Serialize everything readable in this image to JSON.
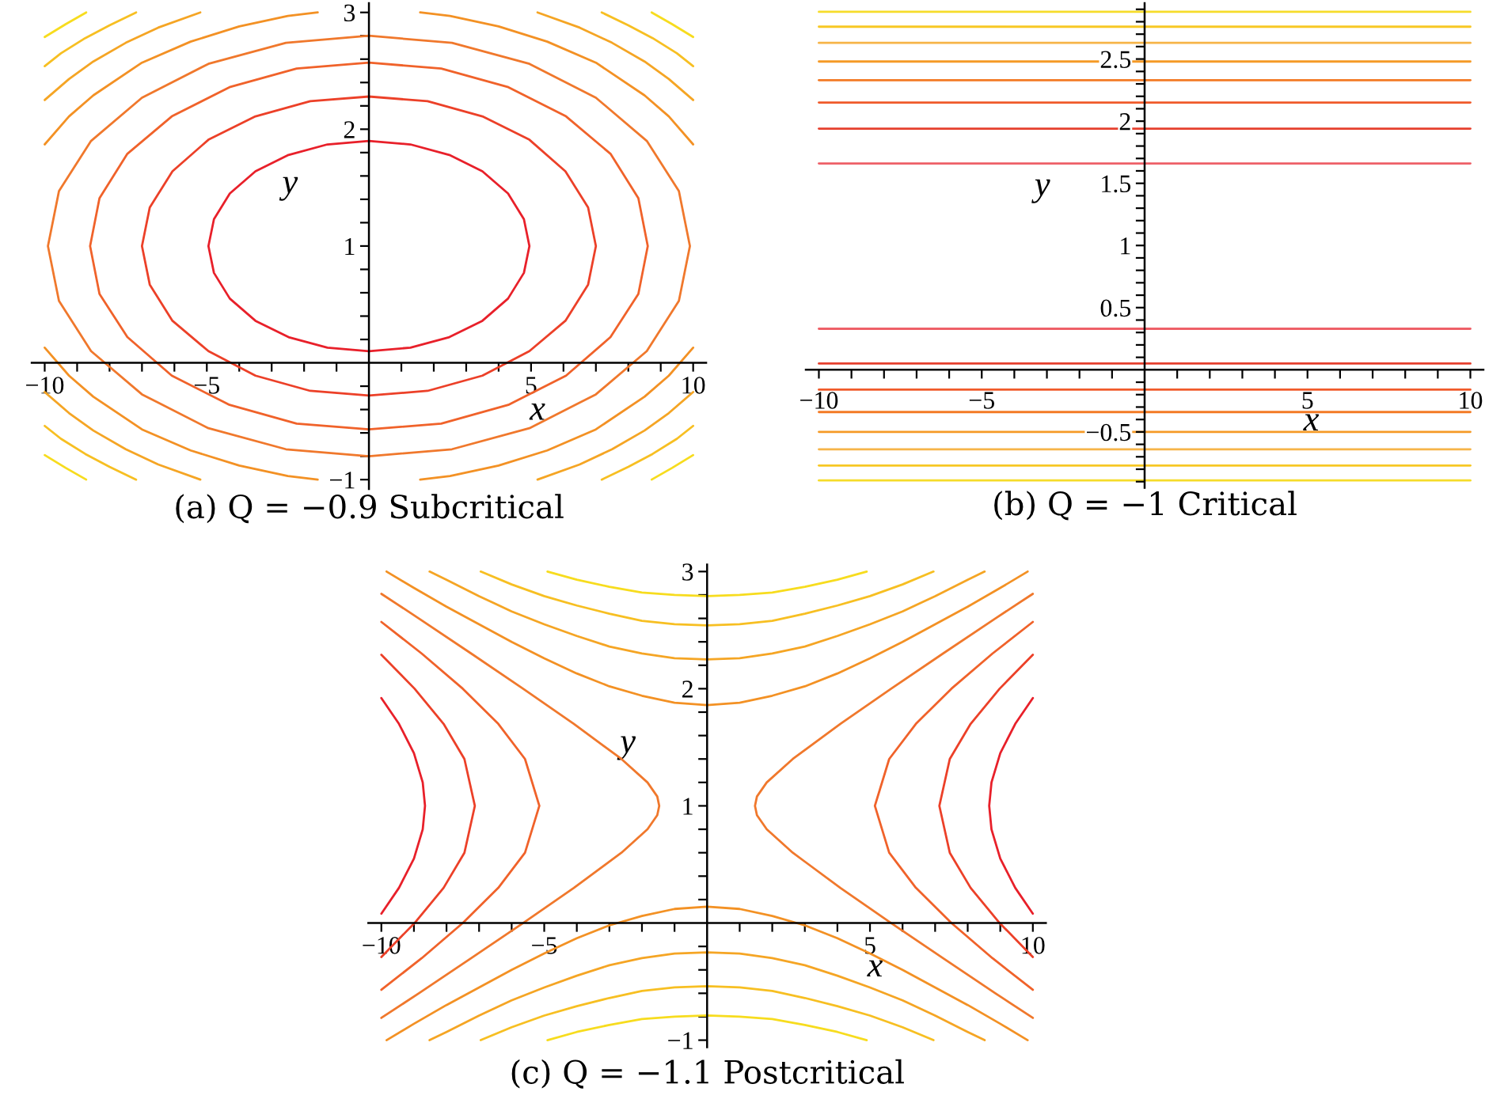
{
  "chart_data": [
    {
      "type": "line",
      "title": "(a) Q = −0.9 Subcritical",
      "xlabel": "x",
      "ylabel": "y",
      "xlim": [
        -10.4,
        10.4
      ],
      "ylim": [
        -1.08,
        3.08
      ],
      "xticks": [
        {
          "value": -10,
          "label": "−10"
        },
        {
          "value": -9,
          "label": null
        },
        {
          "value": -8,
          "label": null
        },
        {
          "value": -7,
          "label": null
        },
        {
          "value": -6,
          "label": null
        },
        {
          "value": -5,
          "label": "−5"
        },
        {
          "value": -4,
          "label": null
        },
        {
          "value": -3,
          "label": null
        },
        {
          "value": -2,
          "label": null
        },
        {
          "value": -1,
          "label": null
        },
        {
          "value": 1,
          "label": null
        },
        {
          "value": 2,
          "label": null
        },
        {
          "value": 3,
          "label": null
        },
        {
          "value": 4,
          "label": null
        },
        5,
        {
          "value": 6,
          "label": null
        },
        {
          "value": 7,
          "label": null
        },
        {
          "value": 8,
          "label": null
        },
        {
          "value": 9,
          "label": null
        },
        10
      ],
      "yticks": [
        {
          "value": -1,
          "label": "−1"
        },
        {
          "value": -0.8,
          "label": null
        },
        {
          "value": -0.6,
          "label": null
        },
        {
          "value": -0.4,
          "label": null
        },
        {
          "value": -0.2,
          "label": null
        },
        {
          "value": 0.2,
          "label": null
        },
        {
          "value": 0.4,
          "label": null
        },
        {
          "value": 0.6,
          "label": null
        },
        {
          "value": 0.8,
          "label": null
        },
        1,
        {
          "value": 1.2,
          "label": null
        },
        {
          "value": 1.4,
          "label": null
        },
        {
          "value": 1.6,
          "label": null
        },
        {
          "value": 1.8,
          "label": null
        },
        2,
        {
          "value": 2.2,
          "label": null
        },
        {
          "value": 2.4,
          "label": null
        },
        {
          "value": 2.6,
          "label": null
        },
        {
          "value": 2.8,
          "label": null
        },
        3
      ],
      "series": [
        {
          "color": "#e8202a",
          "x": [
            4.95,
            4.78,
            4.29,
            3.5,
            2.48,
            1.28,
            0,
            -1.28,
            -2.48,
            -3.5,
            -4.29,
            -4.78,
            -4.95,
            -4.78,
            -4.29,
            -3.5,
            -2.48,
            -1.28,
            0,
            1.28,
            2.48,
            3.5,
            4.29,
            4.78,
            4.95,
            4.78
          ],
          "values": [
            1,
            1.23,
            1.45,
            1.64,
            1.78,
            1.87,
            1.9,
            1.87,
            1.78,
            1.64,
            1.45,
            1.23,
            1,
            0.77,
            0.55,
            0.36,
            0.22,
            0.13,
            0.1,
            0.13,
            0.22,
            0.36,
            0.55,
            0.77,
            1,
            1.23
          ]
        },
        {
          "color": "#ec4028",
          "x": [
            7.0,
            6.76,
            6.06,
            4.95,
            3.5,
            1.81,
            0,
            -1.81,
            -3.5,
            -4.95,
            -6.06,
            -6.76,
            -7.0,
            -6.76,
            -6.06,
            -4.95,
            -3.5,
            -1.81,
            0,
            1.81,
            3.5,
            4.95,
            6.06,
            6.76,
            7.0,
            6.76
          ],
          "values": [
            1,
            1.33,
            1.64,
            1.91,
            2.11,
            2.24,
            2.28,
            2.24,
            2.11,
            1.91,
            1.64,
            1.33,
            1,
            0.67,
            0.36,
            0.1,
            -0.11,
            -0.24,
            -0.28,
            -0.24,
            -0.11,
            0.1,
            0.36,
            0.67,
            1,
            1.33
          ]
        },
        {
          "color": "#f0622a",
          "x": [
            8.6,
            8.31,
            7.45,
            6.08,
            4.3,
            2.23,
            0,
            -2.23,
            -4.3,
            -6.08,
            -7.45,
            -8.31,
            -8.6,
            -8.31,
            -7.45,
            -6.08,
            -4.3,
            -2.23,
            0,
            2.23,
            4.3,
            6.08,
            7.45,
            8.31,
            8.6,
            8.31
          ],
          "values": [
            1,
            1.41,
            1.79,
            2.11,
            2.36,
            2.52,
            2.57,
            2.52,
            2.36,
            2.11,
            1.79,
            1.41,
            1,
            0.59,
            0.22,
            -0.11,
            -0.36,
            -0.52,
            -0.57,
            -0.52,
            -0.36,
            -0.11,
            0.22,
            0.59,
            1,
            1.41
          ]
        },
        {
          "color": "#f0782c",
          "x": [
            9.9,
            9.56,
            8.57,
            7.0,
            4.95,
            2.56,
            0,
            -2.56,
            -4.95,
            -7.0,
            -8.57,
            -9.56,
            -9.9,
            -9.56,
            -8.57,
            -7.0,
            -4.95,
            -2.56,
            0,
            2.56,
            4.95,
            7.0,
            8.57,
            9.56,
            9.9,
            9.56
          ],
          "values": [
            1,
            1.47,
            1.9,
            2.27,
            2.56,
            2.74,
            2.8,
            2.74,
            2.56,
            2.27,
            1.9,
            1.47,
            1,
            0.53,
            0.1,
            -0.27,
            -0.56,
            -0.74,
            -0.8,
            -0.74,
            -0.56,
            -0.27,
            0.1,
            0.53,
            1,
            1.47
          ]
        },
        {
          "color": "#f39124",
          "x": [
            1.58,
            2.5,
            4,
            5.5,
            7,
            8.5,
            9.25,
            10
          ],
          "values": [
            3.0,
            2.97,
            2.88,
            2.75,
            2.57,
            2.29,
            2.11,
            1.87
          ]
        },
        {
          "color": "#f39124",
          "x": [
            -1.58,
            -2.5,
            -4,
            -5.5,
            -7,
            -8.5,
            -9.25,
            -10
          ],
          "values": [
            3.0,
            2.97,
            2.88,
            2.75,
            2.57,
            2.29,
            2.11,
            1.87
          ]
        },
        {
          "color": "#f39124",
          "x": [
            1.58,
            2.5,
            4,
            5.5,
            7,
            8.5,
            9.25,
            10
          ],
          "values": [
            -1.0,
            -0.97,
            -0.88,
            -0.75,
            -0.57,
            -0.29,
            -0.11,
            0.13
          ]
        },
        {
          "color": "#f39124",
          "x": [
            -1.58,
            -2.5,
            -4,
            -5.5,
            -7,
            -8.5,
            -9.25,
            -10
          ],
          "values": [
            -1.0,
            -0.97,
            -0.88,
            -0.75,
            -0.57,
            -0.29,
            -0.11,
            0.13
          ]
        },
        {
          "color": "#f5a524",
          "x": [
            5.2,
            6.5,
            7.5,
            8.5,
            9.25,
            10
          ],
          "values": [
            3.0,
            2.87,
            2.74,
            2.58,
            2.43,
            2.25
          ]
        },
        {
          "color": "#f5a524",
          "x": [
            -5.2,
            -6.5,
            -7.5,
            -8.5,
            -9.25,
            -10
          ],
          "values": [
            3.0,
            2.87,
            2.74,
            2.58,
            2.43,
            2.25
          ]
        },
        {
          "color": "#f5a524",
          "x": [
            5.2,
            6.5,
            7.5,
            8.5,
            9.25,
            10
          ],
          "values": [
            -1.0,
            -0.87,
            -0.74,
            -0.58,
            -0.43,
            -0.25
          ]
        },
        {
          "color": "#f5a524",
          "x": [
            -5.2,
            -6.5,
            -7.5,
            -8.5,
            -9.25,
            -10
          ],
          "values": [
            -1.0,
            -0.87,
            -0.74,
            -0.58,
            -0.43,
            -0.25
          ]
        },
        {
          "color": "#f7bf22",
          "x": [
            7.18,
            8,
            8.75,
            9.5,
            10
          ],
          "values": [
            3.0,
            2.89,
            2.78,
            2.65,
            2.54
          ]
        },
        {
          "color": "#f7bf22",
          "x": [
            -7.18,
            -8,
            -8.75,
            -9.5,
            -10
          ],
          "values": [
            3.0,
            2.89,
            2.78,
            2.65,
            2.54
          ]
        },
        {
          "color": "#f7bf22",
          "x": [
            7.18,
            8,
            8.75,
            9.5,
            10
          ],
          "values": [
            -1.0,
            -0.89,
            -0.78,
            -0.65,
            -0.54
          ]
        },
        {
          "color": "#f7bf22",
          "x": [
            -7.18,
            -8,
            -8.75,
            -9.5,
            -10
          ],
          "values": [
            -1.0,
            -0.89,
            -0.78,
            -0.65,
            -0.54
          ]
        },
        {
          "color": "#f7dc1e",
          "x": [
            8.72,
            9.35,
            10
          ],
          "values": [
            3.0,
            2.9,
            2.79
          ]
        },
        {
          "color": "#f7dc1e",
          "x": [
            -8.72,
            -9.35,
            -10
          ],
          "values": [
            3.0,
            2.9,
            2.79
          ]
        },
        {
          "color": "#f7dc1e",
          "x": [
            8.72,
            9.35,
            10
          ],
          "values": [
            -1.0,
            -0.9,
            -0.79
          ]
        },
        {
          "color": "#f7dc1e",
          "x": [
            -8.72,
            -9.35,
            -10
          ],
          "values": [
            -1.0,
            -0.9,
            -0.79
          ]
        }
      ]
    },
    {
      "type": "line",
      "title": "(b) Q = −1 Critical",
      "xlabel": "x",
      "ylabel": "y",
      "xlim": [
        -10.4,
        10.4
      ],
      "ylim": [
        -0.95,
        2.95
      ],
      "xticks": [
        {
          "value": -10,
          "label": "−10"
        },
        {
          "value": -9,
          "label": null
        },
        {
          "value": -8,
          "label": null
        },
        {
          "value": -7,
          "label": null
        },
        {
          "value": -6,
          "label": null
        },
        {
          "value": -5,
          "label": "−5"
        },
        {
          "value": -4,
          "label": null
        },
        {
          "value": -3,
          "label": null
        },
        {
          "value": -2,
          "label": null
        },
        {
          "value": -1,
          "label": null
        },
        {
          "value": 1,
          "label": null
        },
        {
          "value": 2,
          "label": null
        },
        {
          "value": 3,
          "label": null
        },
        {
          "value": 4,
          "label": null
        },
        5,
        {
          "value": 6,
          "label": null
        },
        {
          "value": 7,
          "label": null
        },
        {
          "value": 8,
          "label": null
        },
        {
          "value": 9,
          "label": null
        },
        10
      ],
      "yticks": [
        {
          "value": -0.9,
          "label": null
        },
        {
          "value": -0.8,
          "label": null
        },
        {
          "value": -0.7,
          "label": null
        },
        {
          "value": -0.6,
          "label": null
        },
        {
          "value": -0.5,
          "label": "−0.5"
        },
        {
          "value": -0.4,
          "label": null
        },
        {
          "value": -0.3,
          "label": null
        },
        {
          "value": -0.2,
          "label": null
        },
        {
          "value": -0.1,
          "label": null
        },
        {
          "value": 0.1,
          "label": null
        },
        {
          "value": 0.2,
          "label": null
        },
        {
          "value": 0.3,
          "label": null
        },
        {
          "value": 0.4,
          "label": null
        },
        0.5,
        {
          "value": 0.6,
          "label": null
        },
        {
          "value": 0.7,
          "label": null
        },
        {
          "value": 0.8,
          "label": null
        },
        {
          "value": 0.9,
          "label": null
        },
        1,
        {
          "value": 1.1,
          "label": null
        },
        {
          "value": 1.2,
          "label": null
        },
        {
          "value": 1.3,
          "label": null
        },
        {
          "value": 1.4,
          "label": null
        },
        1.5,
        {
          "value": 1.6,
          "label": null
        },
        {
          "value": 1.7,
          "label": null
        },
        {
          "value": 1.8,
          "label": null
        },
        {
          "value": 1.9,
          "label": null
        },
        2,
        {
          "value": 2.1,
          "label": null
        },
        {
          "value": 2.2,
          "label": null
        },
        {
          "value": 2.3,
          "label": null
        },
        {
          "value": 2.4,
          "label": null
        },
        2.5,
        {
          "value": 2.6,
          "label": null
        },
        {
          "value": 2.7,
          "label": null
        },
        {
          "value": 2.8,
          "label": null
        },
        {
          "value": 2.9,
          "label": null
        }
      ],
      "series": [
        {
          "color": "#ee6068",
          "x": [
            -10,
            10
          ],
          "values": [
            1.66,
            1.66
          ]
        },
        {
          "color": "#ee6068",
          "x": [
            -10,
            10
          ],
          "values": [
            0.33,
            0.33
          ]
        },
        {
          "color": "#e6402e",
          "x": [
            -10,
            10
          ],
          "values": [
            1.94,
            1.94
          ]
        },
        {
          "color": "#e6402e",
          "x": [
            -10,
            10
          ],
          "values": [
            0.05,
            0.05
          ]
        },
        {
          "color": "#f05a2a",
          "x": [
            -10,
            10
          ],
          "values": [
            2.15,
            2.15
          ]
        },
        {
          "color": "#f05a2a",
          "x": [
            -10,
            10
          ],
          "values": [
            -0.16,
            -0.16
          ]
        },
        {
          "color": "#f37a24",
          "x": [
            -10,
            10
          ],
          "values": [
            2.33,
            2.33
          ]
        },
        {
          "color": "#f37a24",
          "x": [
            -10,
            10
          ],
          "values": [
            -0.34,
            -0.34
          ]
        },
        {
          "color": "#f59a26",
          "x": [
            -10,
            10
          ],
          "values": [
            2.48,
            2.48
          ]
        },
        {
          "color": "#f59a26",
          "x": [
            -10,
            10
          ],
          "values": [
            -0.5,
            -0.5
          ]
        },
        {
          "color": "#f6b448",
          "x": [
            -10,
            10
          ],
          "values": [
            2.63,
            2.63
          ]
        },
        {
          "color": "#f6b448",
          "x": [
            -10,
            10
          ],
          "values": [
            -0.64,
            -0.64
          ]
        },
        {
          "color": "#f7c824",
          "x": [
            -10,
            10
          ],
          "values": [
            2.76,
            2.76
          ]
        },
        {
          "color": "#f7c824",
          "x": [
            -10,
            10
          ],
          "values": [
            -0.77,
            -0.77
          ]
        },
        {
          "color": "#f6dc2a",
          "x": [
            -10,
            10
          ],
          "values": [
            2.88,
            2.88
          ]
        },
        {
          "color": "#f6dc2a",
          "x": [
            -10,
            10
          ],
          "values": [
            -0.89,
            -0.89
          ]
        }
      ]
    },
    {
      "type": "line",
      "title": "(c) Q = −1.1 Postcritical",
      "xlabel": "x",
      "ylabel": "y",
      "xlim": [
        -10.4,
        10.4
      ],
      "ylim": [
        -1.06,
        3.06
      ],
      "xticks": [
        {
          "value": -10,
          "label": "−10"
        },
        {
          "value": -9,
          "label": null
        },
        {
          "value": -8,
          "label": null
        },
        {
          "value": -7,
          "label": null
        },
        {
          "value": -6,
          "label": null
        },
        {
          "value": -5,
          "label": "−5"
        },
        {
          "value": -4,
          "label": null
        },
        {
          "value": -3,
          "label": null
        },
        {
          "value": -2,
          "label": null
        },
        {
          "value": -1,
          "label": null
        },
        {
          "value": 1,
          "label": null
        },
        {
          "value": 2,
          "label": null
        },
        {
          "value": 3,
          "label": null
        },
        {
          "value": 4,
          "label": null
        },
        5,
        {
          "value": 6,
          "label": null
        },
        {
          "value": 7,
          "label": null
        },
        {
          "value": 8,
          "label": null
        },
        {
          "value": 9,
          "label": null
        },
        10
      ],
      "yticks": [
        {
          "value": -1,
          "label": "−1"
        },
        {
          "value": -0.8,
          "label": null
        },
        {
          "value": -0.6,
          "label": null
        },
        {
          "value": -0.4,
          "label": null
        },
        {
          "value": -0.2,
          "label": null
        },
        {
          "value": 0.2,
          "label": null
        },
        {
          "value": 0.4,
          "label": null
        },
        {
          "value": 0.6,
          "label": null
        },
        {
          "value": 0.8,
          "label": null
        },
        1,
        {
          "value": 1.2,
          "label": null
        },
        {
          "value": 1.4,
          "label": null
        },
        {
          "value": 1.6,
          "label": null
        },
        {
          "value": 1.8,
          "label": null
        },
        2,
        {
          "value": 2.2,
          "label": null
        },
        {
          "value": 2.4,
          "label": null
        },
        {
          "value": 2.6,
          "label": null
        },
        {
          "value": 2.8,
          "label": null
        },
        3
      ],
      "series": [
        {
          "color": "#e8202a",
          "x": [
            10,
            9.46,
            9.0,
            8.73,
            8.66,
            8.73,
            9.0,
            9.46,
            10
          ],
          "values": [
            1.92,
            1.7,
            1.45,
            1.2,
            1.0,
            0.8,
            0.55,
            0.3,
            0.08
          ]
        },
        {
          "color": "#e8202a",
          "x": [
            -10,
            -9.46,
            -9.0,
            -8.73,
            -8.66,
            -8.73,
            -9.0,
            -9.46,
            -10
          ],
          "values": [
            1.92,
            1.7,
            1.45,
            1.2,
            1.0,
            0.8,
            0.55,
            0.3,
            0.08
          ]
        },
        {
          "color": "#ec4028",
          "x": [
            10,
            8.98,
            8.09,
            7.45,
            7.13,
            7.45,
            8.09,
            8.98,
            10
          ],
          "values": [
            2.29,
            2.0,
            1.7,
            1.4,
            1.0,
            0.6,
            0.3,
            0.0,
            -0.29
          ]
        },
        {
          "color": "#ec4028",
          "x": [
            -10,
            -8.98,
            -8.09,
            -7.45,
            -7.13,
            -7.45,
            -8.09,
            -8.98,
            -10
          ],
          "values": [
            2.29,
            2.0,
            1.7,
            1.4,
            1.0,
            0.6,
            0.3,
            0.0,
            -0.29
          ]
        },
        {
          "color": "#f0622a",
          "x": [
            10,
            8.76,
            7.5,
            6.41,
            5.59,
            5.15,
            5.59,
            6.41,
            7.5,
            8.76,
            10
          ],
          "values": [
            2.57,
            2.3,
            2.0,
            1.7,
            1.4,
            1.0,
            0.6,
            0.3,
            0.0,
            -0.3,
            -0.57
          ]
        },
        {
          "color": "#f0622a",
          "x": [
            -10,
            -8.76,
            -7.5,
            -6.41,
            -5.59,
            -5.15,
            -5.59,
            -6.41,
            -7.5,
            -8.76,
            -10
          ],
          "values": [
            2.57,
            2.3,
            2.0,
            1.7,
            1.4,
            1.0,
            0.6,
            0.3,
            0.0,
            -0.3,
            -0.57
          ]
        },
        {
          "color": "#f0782c",
          "x": [
            10,
            8.85,
            7.24,
            5.65,
            4.09,
            2.63,
            1.83,
            1.53,
            1.47,
            1.53,
            1.83,
            2.63,
            4.09,
            5.65,
            7.24,
            8.85,
            10
          ],
          "values": [
            2.81,
            2.6,
            2.3,
            2.0,
            1.7,
            1.4,
            1.2,
            1.08,
            1.0,
            0.92,
            0.8,
            0.6,
            0.3,
            0.0,
            -0.3,
            -0.6,
            -0.81
          ]
        },
        {
          "color": "#f0782c",
          "x": [
            -10,
            -8.85,
            -7.24,
            -5.65,
            -4.09,
            -2.63,
            -1.83,
            -1.53,
            -1.47,
            -1.53,
            -1.83,
            -2.63,
            -4.09,
            -5.65,
            -7.24,
            -8.85,
            -10
          ],
          "values": [
            2.81,
            2.6,
            2.3,
            2.0,
            1.7,
            1.4,
            1.2,
            1.08,
            1.0,
            0.92,
            0.8,
            0.6,
            0.3,
            0.0,
            -0.3,
            -0.6,
            -0.81
          ]
        },
        {
          "color": "#f39124",
          "x": [
            -9.84,
            -9,
            -8,
            -7,
            -6,
            -5,
            -4,
            -3,
            -2,
            -1,
            0,
            1,
            2,
            3,
            4,
            5,
            6,
            7,
            8,
            9,
            9.84
          ],
          "values": [
            3.0,
            2.86,
            2.7,
            2.55,
            2.4,
            2.26,
            2.13,
            2.02,
            1.94,
            1.88,
            1.86,
            1.88,
            1.94,
            2.02,
            2.13,
            2.26,
            2.4,
            2.55,
            2.7,
            2.86,
            3.0
          ]
        },
        {
          "color": "#f39124",
          "x": [
            -9.84,
            -9,
            -8,
            -7,
            -6,
            -5,
            -4,
            -3,
            -2,
            -1,
            0,
            1,
            2,
            3,
            4,
            5,
            6,
            7,
            8,
            9,
            9.84
          ],
          "values": [
            -1.0,
            -0.86,
            -0.7,
            -0.55,
            -0.4,
            -0.26,
            -0.13,
            -0.02,
            0.06,
            0.12,
            0.14,
            0.12,
            0.06,
            -0.02,
            -0.13,
            -0.26,
            -0.4,
            -0.55,
            -0.7,
            -0.86,
            -1.0
          ]
        },
        {
          "color": "#f5a524",
          "x": [
            -8.52,
            -8,
            -7,
            -6,
            -5,
            -4,
            -3,
            -2,
            -1,
            0,
            1,
            2,
            3,
            4,
            5,
            6,
            7,
            8,
            8.52
          ],
          "values": [
            3.0,
            2.93,
            2.79,
            2.66,
            2.55,
            2.45,
            2.36,
            2.3,
            2.26,
            2.25,
            2.26,
            2.3,
            2.36,
            2.45,
            2.55,
            2.66,
            2.79,
            2.93,
            3.0
          ]
        },
        {
          "color": "#f5a524",
          "x": [
            -8.52,
            -8,
            -7,
            -6,
            -5,
            -4,
            -3,
            -2,
            -1,
            0,
            1,
            2,
            3,
            4,
            5,
            6,
            7,
            8,
            8.52
          ],
          "values": [
            -1.0,
            -0.93,
            -0.79,
            -0.66,
            -0.55,
            -0.45,
            -0.36,
            -0.3,
            -0.26,
            -0.25,
            -0.26,
            -0.3,
            -0.36,
            -0.45,
            -0.55,
            -0.66,
            -0.79,
            -0.93,
            -1.0
          ]
        },
        {
          "color": "#f7bf22",
          "x": [
            -6.95,
            -6,
            -5,
            -4,
            -3,
            -2,
            -1,
            0,
            1,
            2,
            3,
            4,
            5,
            6,
            6.95
          ],
          "values": [
            3.0,
            2.89,
            2.79,
            2.71,
            2.64,
            2.58,
            2.55,
            2.54,
            2.55,
            2.58,
            2.64,
            2.71,
            2.79,
            2.89,
            3.0
          ]
        },
        {
          "color": "#f7bf22",
          "x": [
            -6.95,
            -6,
            -5,
            -4,
            -3,
            -2,
            -1,
            0,
            1,
            2,
            3,
            4,
            5,
            6,
            6.95
          ],
          "values": [
            -1.0,
            -0.89,
            -0.79,
            -0.71,
            -0.64,
            -0.58,
            -0.55,
            -0.54,
            -0.55,
            -0.58,
            -0.64,
            -0.71,
            -0.79,
            -0.89,
            -1.0
          ]
        },
        {
          "color": "#f7dc1e",
          "x": [
            -4.9,
            -4,
            -3,
            -2,
            -1,
            0,
            1,
            2,
            3,
            4,
            4.9
          ],
          "values": [
            3.0,
            2.93,
            2.87,
            2.82,
            2.8,
            2.79,
            2.8,
            2.82,
            2.87,
            2.93,
            3.0
          ]
        },
        {
          "color": "#f7dc1e",
          "x": [
            -4.9,
            -4,
            -3,
            -2,
            -1,
            0,
            1,
            2,
            3,
            4,
            4.9
          ],
          "values": [
            -1.0,
            -0.93,
            -0.87,
            -0.82,
            -0.8,
            -0.79,
            -0.8,
            -0.82,
            -0.87,
            -0.93,
            -1.0
          ]
        }
      ]
    }
  ]
}
